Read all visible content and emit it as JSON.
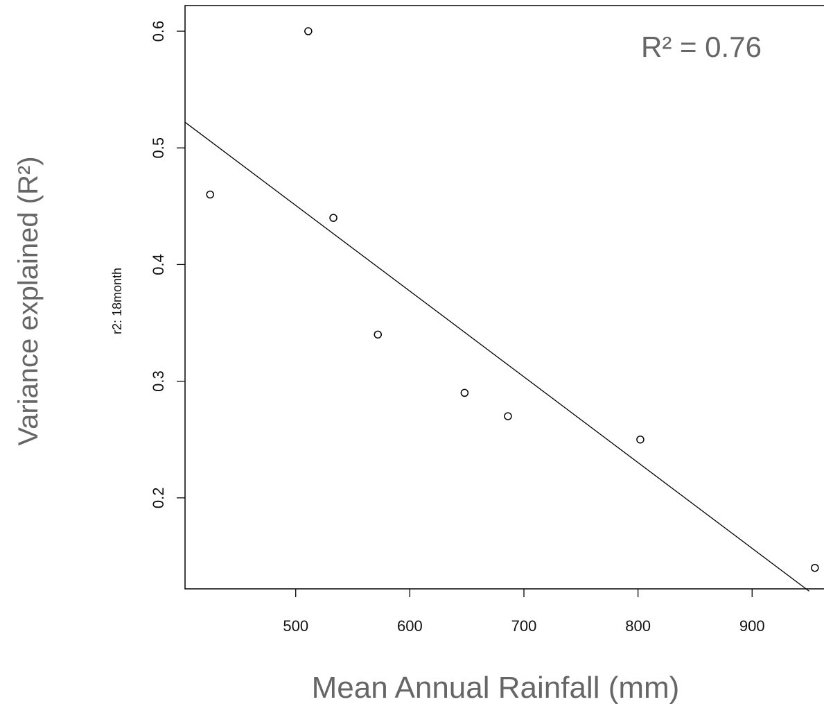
{
  "chart_data": {
    "type": "scatter",
    "x": [
      425,
      511,
      533,
      572,
      648,
      686,
      802,
      955
    ],
    "y": [
      0.46,
      0.6,
      0.44,
      0.34,
      0.29,
      0.27,
      0.25,
      0.14
    ],
    "xlim": [
      403,
      963
    ],
    "ylim": [
      0.122,
      0.622
    ],
    "xticks": [
      500,
      600,
      700,
      800,
      900
    ],
    "yticks": [
      0.2,
      0.3,
      0.4,
      0.5,
      0.6
    ],
    "fit_line": {
      "x": [
        403,
        950
      ],
      "y": [
        0.522,
        0.12
      ]
    },
    "annotation": "R² = 0.76",
    "xlabel": "Mean Annual Rainfall (mm)",
    "ylabel": "Variance explained (R²)",
    "ylabel_inner": "r2: 18month",
    "grid": false
  }
}
